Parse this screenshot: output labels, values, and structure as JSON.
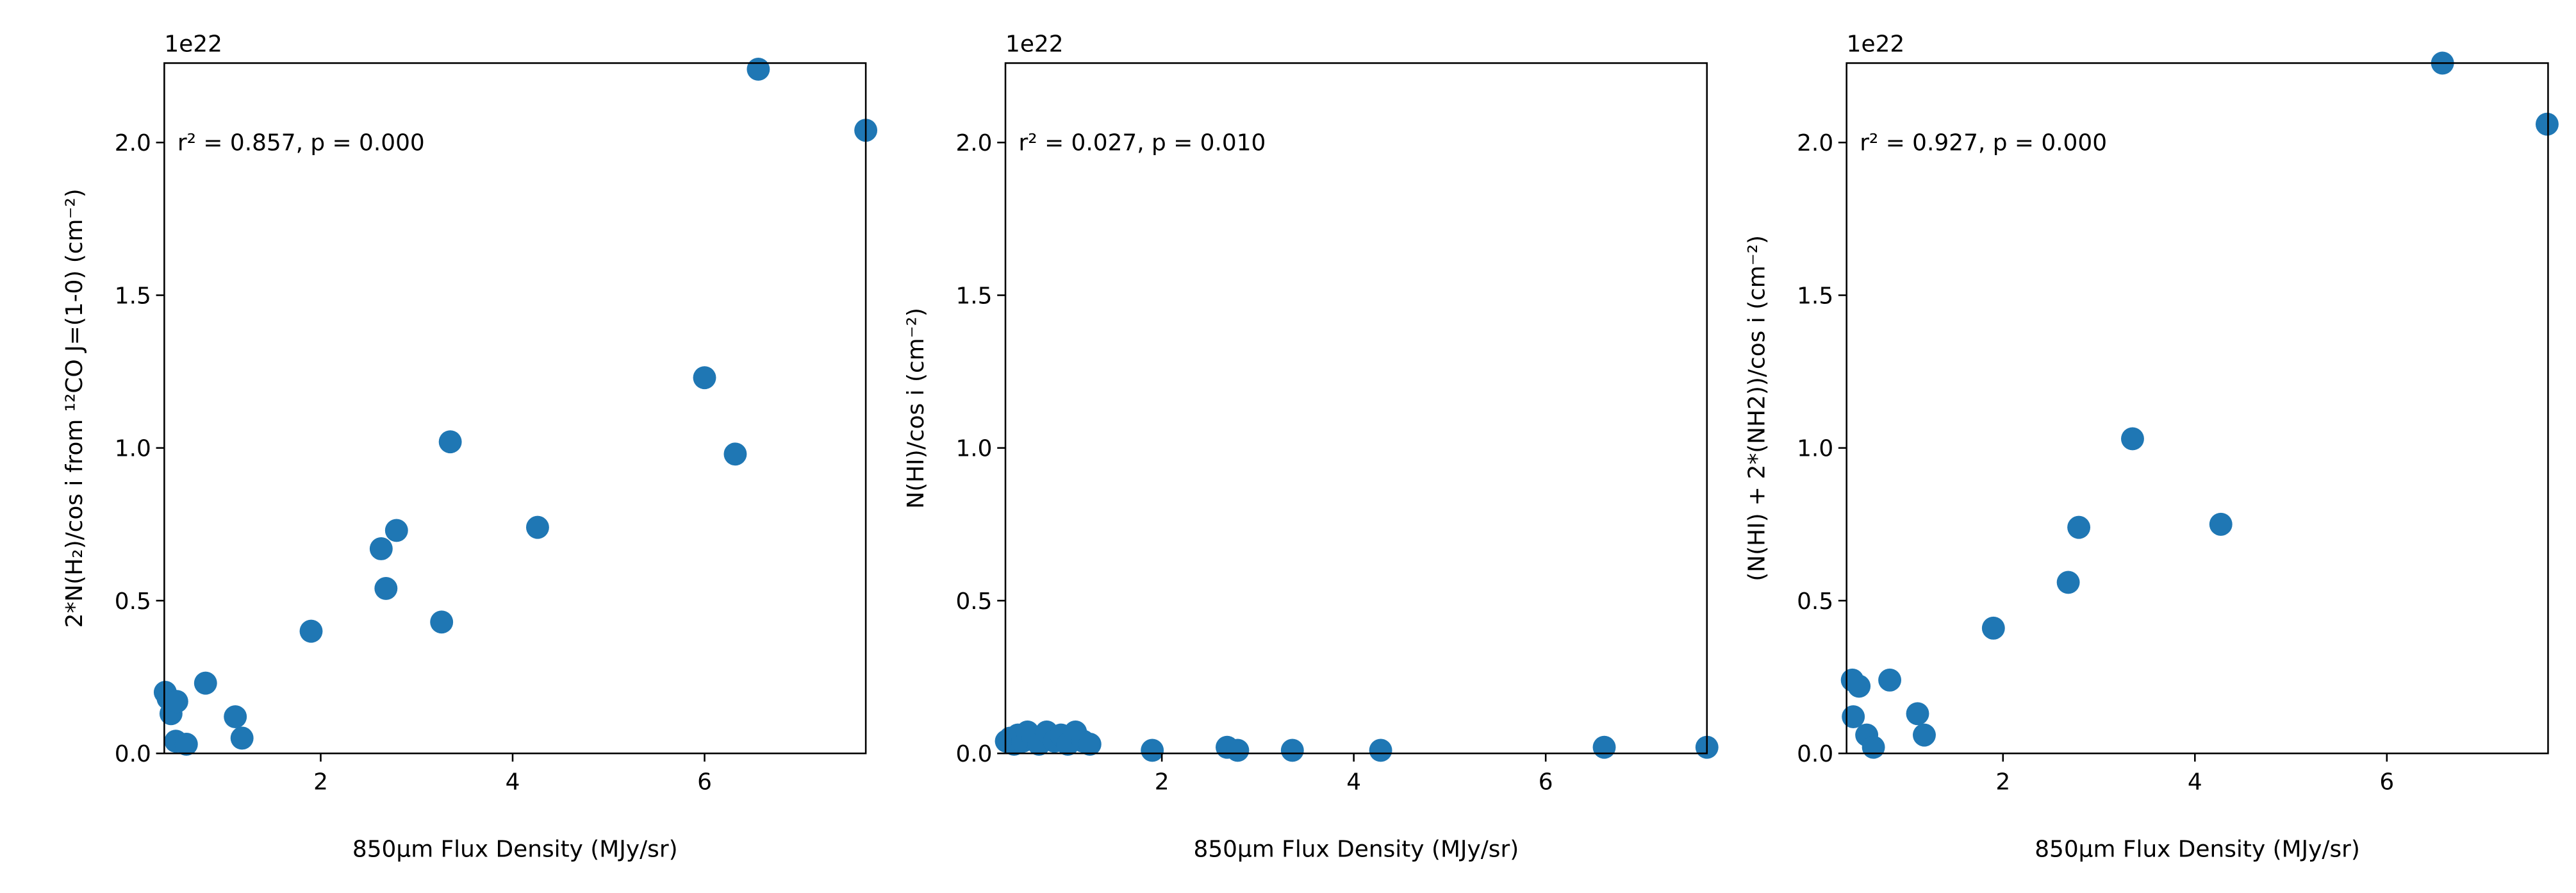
{
  "chart_data": [
    {
      "type": "scatter",
      "color": "#1f77b4",
      "annotation": "r² = 0.857, p = 0.000",
      "offset_text": "1e22",
      "xlabel": "850μm Flux Density (MJy/sr)",
      "ylabel": "2*N(H₂)/cos i from ¹²CO J=(1-0) (cm⁻²)",
      "x": [
        0.38,
        0.41,
        0.44,
        0.5,
        0.49,
        0.6,
        0.8,
        1.11,
        1.18,
        1.9,
        2.63,
        2.68,
        2.79,
        3.26,
        3.35,
        4.26,
        6.0,
        6.32,
        6.56,
        7.68
      ],
      "values": [
        0.2,
        0.18,
        0.13,
        0.17,
        0.04,
        0.03,
        0.23,
        0.12,
        0.05,
        0.4,
        0.67,
        0.54,
        0.73,
        0.43,
        1.02,
        0.74,
        1.23,
        0.98,
        2.24,
        2.04
      ],
      "xlim": [
        0.37,
        7.68
      ],
      "ylim": [
        0,
        2.26
      ],
      "xticks": [
        2,
        4,
        6
      ],
      "yticks": [
        {
          "value": 0,
          "label": "0.0"
        },
        0.5,
        {
          "value": 1,
          "label": "1.0"
        },
        1.5,
        {
          "value": 2,
          "label": "2.0"
        }
      ]
    },
    {
      "type": "scatter",
      "color": "#1f77b4",
      "annotation": "r² = 0.027, p = 0.010",
      "offset_text": "1e22",
      "xlabel": "850μm Flux Density (MJy/sr)",
      "ylabel": "N(HI)/cos i (cm⁻²)",
      "x": [
        0.38,
        0.42,
        0.46,
        0.5,
        0.55,
        0.6,
        0.66,
        0.72,
        0.8,
        0.88,
        0.95,
        1.02,
        1.1,
        1.18,
        1.25,
        1.9,
        2.68,
        2.79,
        3.36,
        4.28,
        6.61,
        7.68
      ],
      "values": [
        0.04,
        0.05,
        0.03,
        0.06,
        0.04,
        0.07,
        0.05,
        0.03,
        0.07,
        0.04,
        0.06,
        0.03,
        0.07,
        0.04,
        0.03,
        0.01,
        0.02,
        0.01,
        0.01,
        0.01,
        0.02,
        0.02
      ],
      "xlim": [
        0.37,
        7.68
      ],
      "ylim": [
        0,
        2.26
      ],
      "xticks": [
        2,
        4,
        6
      ],
      "yticks": [
        {
          "value": 0,
          "label": "0.0"
        },
        0.5,
        {
          "value": 1,
          "label": "1.0"
        },
        1.5,
        {
          "value": 2,
          "label": "2.0"
        }
      ]
    },
    {
      "type": "scatter",
      "color": "#1f77b4",
      "annotation": "r² = 0.927, p = 0.000",
      "offset_text": "1e22",
      "xlabel": "850μm Flux Density (MJy/sr)",
      "ylabel": "(N(HI) + 2*(NH2))/cos i (cm⁻²)",
      "x": [
        0.43,
        0.5,
        0.44,
        0.58,
        0.65,
        0.82,
        1.11,
        1.18,
        1.9,
        2.68,
        2.79,
        3.35,
        4.27,
        6.58,
        7.67
      ],
      "values": [
        0.24,
        0.22,
        0.12,
        0.06,
        0.02,
        0.24,
        0.13,
        0.06,
        0.41,
        0.56,
        0.74,
        1.03,
        0.75,
        2.26,
        2.06
      ],
      "xlim": [
        0.37,
        7.68
      ],
      "ylim": [
        0,
        2.26
      ],
      "xticks": [
        2,
        4,
        6
      ],
      "yticks": [
        {
          "value": 0,
          "label": "0.0"
        },
        0.5,
        {
          "value": 1,
          "label": "1.0"
        },
        1.5,
        {
          "value": 2,
          "label": "2.0"
        }
      ]
    }
  ]
}
